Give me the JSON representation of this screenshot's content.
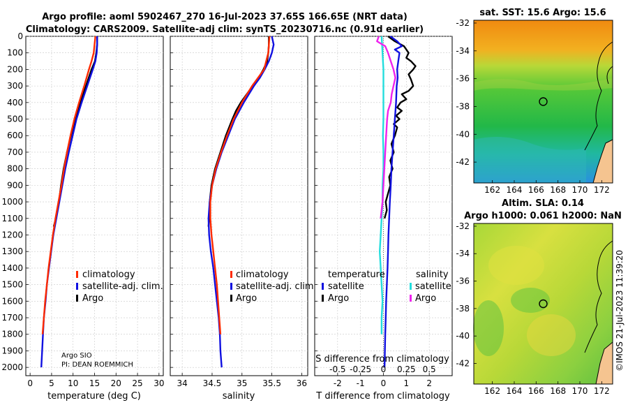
{
  "header": {
    "title_line1": "Argo profile: aoml 5902467_270 16-Jul-2023 37.65S 166.65E (NRT data)",
    "title_line2": "Climatology: CARS2009. Satellite-adj clim: synTS_20230716.nc (0.91d earlier)"
  },
  "credits": {
    "argo": "Argo SIO",
    "pi": "PI: DEAN ROEMMICH",
    "imos": "©IMOS 21-Jul-2023 11:39:20"
  },
  "colors": {
    "climatology": "#ff2a00",
    "satellite": "#1010e0",
    "argo": "#000000",
    "sat_salinity": "#22dddd",
    "argo_salinity": "#ee22ee"
  },
  "chart_data": [
    {
      "type": "line",
      "id": "temperature",
      "xlabel": "temperature (deg C)",
      "ylabel": "",
      "xlim": [
        -1,
        31
      ],
      "ylim": [
        2050,
        0
      ],
      "xticks": [
        0,
        5,
        10,
        15,
        20,
        25,
        30
      ],
      "yticks": [
        0,
        100,
        200,
        300,
        400,
        500,
        600,
        700,
        800,
        900,
        1000,
        1100,
        1200,
        1300,
        1400,
        1500,
        1600,
        1700,
        1800,
        1900,
        2000
      ],
      "legend": [
        "climatology",
        "satellite-adj. clim.",
        "Argo"
      ],
      "series": [
        {
          "name": "Argo",
          "color": "#000000",
          "depth": [
            0,
            50,
            100,
            150,
            200,
            300,
            400,
            500,
            600,
            700,
            800,
            900,
            1000,
            1100,
            1150
          ],
          "values": [
            15.6,
            15.6,
            15.4,
            15.1,
            14.3,
            13.0,
            11.7,
            10.5,
            9.5,
            8.6,
            7.8,
            7.2,
            6.7,
            6.0,
            5.5
          ]
        },
        {
          "name": "satellite-adj. clim.",
          "color": "#1010e0",
          "depth": [
            0,
            50,
            100,
            150,
            200,
            300,
            400,
            500,
            600,
            700,
            800,
            900,
            1000,
            1100,
            1200,
            1300,
            1400,
            1500,
            1600,
            1700,
            1800,
            1900,
            2000
          ],
          "values": [
            15.6,
            15.6,
            15.5,
            15.2,
            14.6,
            13.3,
            12.0,
            10.8,
            9.9,
            9.0,
            8.2,
            7.5,
            6.8,
            6.1,
            5.4,
            4.9,
            4.4,
            3.9,
            3.6,
            3.2,
            3.0,
            2.8,
            2.6
          ]
        },
        {
          "name": "climatology",
          "color": "#ff2a00",
          "depth": [
            0,
            50,
            100,
            150,
            200,
            300,
            400,
            500,
            600,
            700,
            800,
            900,
            1000,
            1100,
            1200,
            1300,
            1400,
            1500,
            1600,
            1700,
            1800
          ],
          "values": [
            15.2,
            15.0,
            14.8,
            14.3,
            13.7,
            12.6,
            11.4,
            10.3,
            9.4,
            8.6,
            7.9,
            7.3,
            6.6,
            5.9,
            5.3,
            4.8,
            4.3,
            3.9,
            3.5,
            3.2,
            2.9
          ]
        }
      ]
    },
    {
      "type": "line",
      "id": "salinity",
      "xlabel": "salinity",
      "ylabel": "",
      "xlim": [
        33.8,
        36.1
      ],
      "ylim": [
        2050,
        0
      ],
      "xticks": [
        34,
        34.5,
        35,
        35.5,
        36
      ],
      "legend": [
        "climatology",
        "satellite-adj. clim.",
        "Argo"
      ],
      "series": [
        {
          "name": "Argo",
          "color": "#000000",
          "depth": [
            0,
            50,
            100,
            150,
            200,
            250,
            300,
            350,
            400,
            450,
            500,
            600,
            700,
            800,
            900,
            1000,
            1100,
            1150
          ],
          "values": [
            35.45,
            35.45,
            35.44,
            35.42,
            35.36,
            35.28,
            35.18,
            35.08,
            34.98,
            34.9,
            34.84,
            34.73,
            34.64,
            34.55,
            34.49,
            34.46,
            34.45,
            34.44
          ]
        },
        {
          "name": "satellite-adj. clim.",
          "color": "#1010e0",
          "depth": [
            0,
            50,
            100,
            150,
            200,
            250,
            300,
            400,
            500,
            600,
            700,
            800,
            900,
            1000,
            1100,
            1200,
            1300,
            1400,
            1500,
            1600,
            1700,
            1800,
            1900,
            2000
          ],
          "values": [
            35.5,
            35.53,
            35.5,
            35.45,
            35.38,
            35.3,
            35.2,
            35.03,
            34.88,
            34.77,
            34.66,
            34.57,
            34.5,
            34.46,
            34.44,
            34.45,
            34.48,
            34.52,
            34.55,
            34.58,
            34.61,
            34.63,
            34.64,
            34.66
          ]
        },
        {
          "name": "climatology",
          "color": "#ff2a00",
          "depth": [
            0,
            100,
            200,
            300,
            400,
            500,
            600,
            700,
            800,
            900,
            1000,
            1100,
            1200,
            1300,
            1400,
            1500,
            1600,
            1700,
            1800
          ],
          "values": [
            35.46,
            35.44,
            35.37,
            35.17,
            35.0,
            34.86,
            34.75,
            34.65,
            34.56,
            34.5,
            34.47,
            34.47,
            34.49,
            34.52,
            34.55,
            34.58,
            34.6,
            34.62,
            34.64
          ]
        }
      ]
    },
    {
      "type": "line",
      "id": "difference",
      "xlabel": "T difference from climatology",
      "top_label": "S difference from climatology",
      "xlim": [
        -3,
        3
      ],
      "ylim": [
        2050,
        0
      ],
      "xticks": [
        -2,
        -1,
        0,
        1,
        2
      ],
      "top_ticks": [
        "-0.5",
        "-0.25",
        "0",
        "0.25",
        "0.5"
      ],
      "legend_left_title": "temperature",
      "legend_right_title": "salinity",
      "legend_left": [
        "satellite",
        "Argo"
      ],
      "legend_right": [
        "satellite",
        "Argo"
      ],
      "series": [
        {
          "name": "T Argo",
          "color": "#000000",
          "depth": [
            0,
            30,
            60,
            100,
            130,
            150,
            180,
            200,
            230,
            260,
            300,
            330,
            350,
            380,
            400,
            430,
            450,
            480,
            500,
            530,
            550,
            600,
            650,
            700,
            750,
            800,
            850,
            900,
            950,
            1000,
            1050,
            1100
          ],
          "values": [
            0.2,
            0.5,
            0.9,
            1.1,
            1.0,
            1.2,
            1.4,
            1.3,
            1.1,
            1.2,
            1.3,
            1.1,
            0.8,
            1.0,
            0.75,
            0.6,
            0.8,
            0.55,
            0.7,
            0.45,
            0.6,
            0.5,
            0.35,
            0.45,
            0.3,
            0.4,
            0.25,
            0.3,
            0.2,
            0.1,
            0.15,
            0.05
          ]
        },
        {
          "name": "T satellite",
          "color": "#1010e0",
          "depth": [
            0,
            30,
            60,
            80,
            100,
            150,
            200,
            250,
            300,
            400,
            500,
            600,
            700,
            800,
            900,
            1000,
            1100,
            1200,
            1300,
            1400,
            1500,
            1600,
            1700,
            1800,
            2000
          ],
          "values": [
            0.3,
            0.6,
            0.8,
            0.5,
            0.7,
            0.65,
            0.6,
            0.62,
            0.58,
            0.55,
            0.5,
            0.45,
            0.4,
            0.35,
            0.32,
            0.28,
            0.25,
            0.22,
            0.2,
            0.18,
            0.15,
            0.12,
            0.1,
            0.08,
            0.05
          ]
        },
        {
          "name": "S satellite",
          "color": "#22dddd",
          "depth": [
            0,
            100,
            200,
            300,
            400,
            500,
            600,
            700,
            800,
            900,
            1000,
            1100,
            1200,
            1300,
            1400,
            1500,
            1600,
            1700,
            1800
          ],
          "values": [
            -0.02,
            -0.01,
            0.0,
            0.0,
            0.0,
            0.0,
            -0.005,
            0.0,
            0.0,
            -0.01,
            -0.01,
            -0.02,
            -0.03,
            -0.04,
            -0.03,
            -0.02,
            -0.01,
            -0.02,
            -0.02
          ]
        },
        {
          "name": "S Argo",
          "color": "#ee22ee",
          "depth": [
            0,
            30,
            60,
            100,
            150,
            200,
            250,
            300,
            350,
            400,
            450,
            500,
            600,
            700,
            800,
            900,
            1000,
            1050,
            1100
          ],
          "values": [
            -0.05,
            -0.07,
            0.02,
            0.05,
            0.08,
            0.11,
            0.13,
            0.11,
            0.09,
            0.08,
            0.05,
            0.04,
            0.03,
            0.02,
            0.01,
            0.0,
            -0.01,
            -0.02,
            -0.03
          ]
        }
      ]
    },
    {
      "type": "heatmap",
      "id": "sst-map",
      "title": "sat. SST: 15.6 Argo: 15.6",
      "xticks": [
        "162",
        "164",
        "166",
        "168",
        "170",
        "172"
      ],
      "yticks": [
        "-32",
        "-34",
        "-36",
        "-38",
        "-40",
        "-42"
      ],
      "xlim": [
        160.3,
        173
      ],
      "ylim": [
        -43.5,
        -31.8
      ],
      "marker": [
        166.65,
        -37.65
      ]
    },
    {
      "type": "heatmap",
      "id": "sla-map",
      "title_line1": "Altim. SLA: 0.14",
      "title_line2": "Argo h1000: 0.061 h2000: NaN",
      "xticks": [
        "162",
        "164",
        "166",
        "168",
        "170",
        "172"
      ],
      "yticks": [
        "-32",
        "-34",
        "-36",
        "-38",
        "-40",
        "-42"
      ],
      "xlim": [
        160.3,
        173
      ],
      "ylim": [
        -43.5,
        -31.8
      ],
      "marker": [
        166.65,
        -37.65
      ]
    }
  ]
}
